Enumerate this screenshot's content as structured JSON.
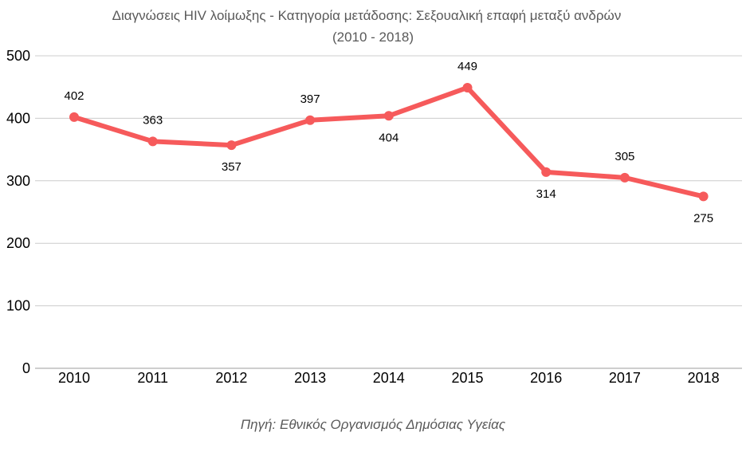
{
  "chart_data": {
    "type": "line",
    "title": "Διαγνώσεις HIV λοίμωξης - Κατηγορία μετάδοσης: Σεξουαλική επαφή μεταξύ ανδρών",
    "subtitle": "(2010 - 2018)",
    "source_note": "Πηγή: Εθνικός Οργανισμός Δημόσιας Υγείας",
    "categories": [
      "2010",
      "2011",
      "2012",
      "2013",
      "2014",
      "2015",
      "2016",
      "2017",
      "2018"
    ],
    "series": [
      {
        "values": [
          402,
          363,
          357,
          397,
          404,
          449,
          314,
          305,
          275
        ],
        "color": "#f65a5b"
      }
    ],
    "label_positions": [
      "above",
      "above",
      "below",
      "above",
      "below",
      "above",
      "below",
      "above",
      "below"
    ],
    "yticks": [
      0,
      100,
      200,
      300,
      400,
      500
    ],
    "ylim": [
      0,
      500
    ],
    "xlabel": "",
    "ylabel": "",
    "grid": true,
    "legend": "none",
    "gridline_color": "#cccccc",
    "text_color": "#595959"
  }
}
